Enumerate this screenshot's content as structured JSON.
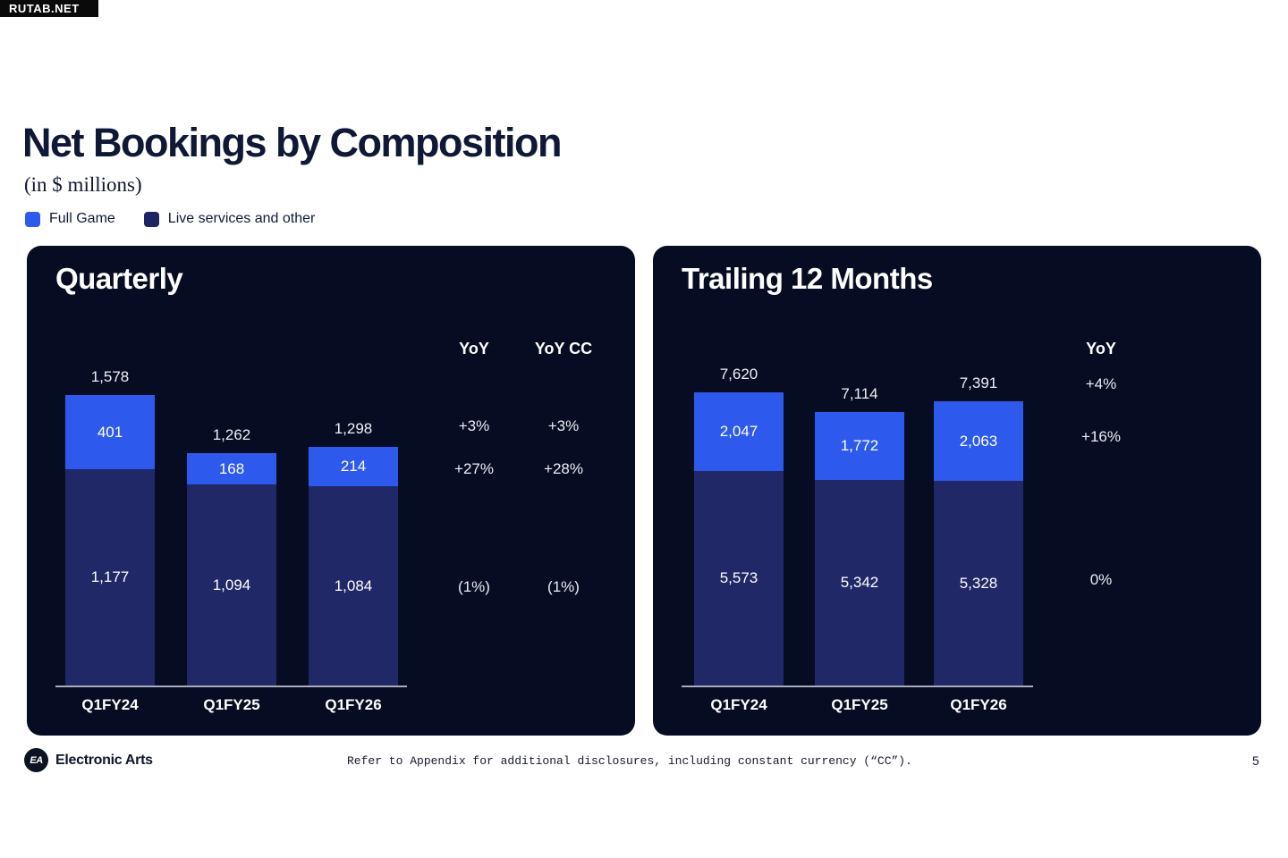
{
  "badge": "RUTAB.NET",
  "page": {
    "title": "Net Bookings by Composition",
    "subtitle": "(in $ millions)",
    "footnote": "Refer to Appendix for additional disclosures, including constant currency (“CC”).",
    "brand": "Electronic Arts",
    "brand_icon_text": "EA",
    "page_number": "5"
  },
  "colors": {
    "full_game": "#2d5aec",
    "live_services": "#212868",
    "panel_background": "#060c22",
    "baseline": "#a8adbe"
  },
  "legend": [
    {
      "label": "Full Game",
      "color": "#2d5aec"
    },
    {
      "label": "Live services and other",
      "color": "#1d2463"
    }
  ],
  "chart_data": [
    {
      "type": "bar",
      "stacked": true,
      "title": "Quarterly",
      "categories": [
        "Q1FY24",
        "Q1FY25",
        "Q1FY26"
      ],
      "series": [
        {
          "name": "Full Game",
          "color": "#2d5aec",
          "values": [
            401,
            168,
            214
          ],
          "labels": [
            "401",
            "168",
            "214"
          ]
        },
        {
          "name": "Live services and other",
          "color": "#212868",
          "values": [
            1177,
            1094,
            1084
          ],
          "labels": [
            "1,177",
            "1,094",
            "1,084"
          ]
        }
      ],
      "totals": [
        1578,
        1262,
        1298
      ],
      "total_labels": [
        "1,578",
        "1,262",
        "1,298"
      ],
      "value_axis_hidden": true,
      "grid": false,
      "yoy_columns": [
        {
          "header": "YoY",
          "total": "+3%",
          "full_game": "+27%",
          "live_services": "(1%)"
        },
        {
          "header": "YoY CC",
          "total": "+3%",
          "full_game": "+28%",
          "live_services": "(1%)"
        }
      ]
    },
    {
      "type": "bar",
      "stacked": true,
      "title": "Trailing 12 Months",
      "categories": [
        "Q1FY24",
        "Q1FY25",
        "Q1FY26"
      ],
      "series": [
        {
          "name": "Full Game",
          "color": "#2d5aec",
          "values": [
            2047,
            1772,
            2063
          ],
          "labels": [
            "2,047",
            "1,772",
            "2,063"
          ]
        },
        {
          "name": "Live services and other",
          "color": "#212868",
          "values": [
            5573,
            5342,
            5328
          ],
          "labels": [
            "5,573",
            "5,342",
            "5,328"
          ]
        }
      ],
      "totals": [
        7620,
        7114,
        7391
      ],
      "total_labels": [
        "7,620",
        "7,114",
        "7,391"
      ],
      "value_axis_hidden": true,
      "grid": false,
      "yoy_columns": [
        {
          "header": "YoY",
          "total": "+4%",
          "full_game": "+16%",
          "live_services": "0%"
        }
      ]
    }
  ]
}
